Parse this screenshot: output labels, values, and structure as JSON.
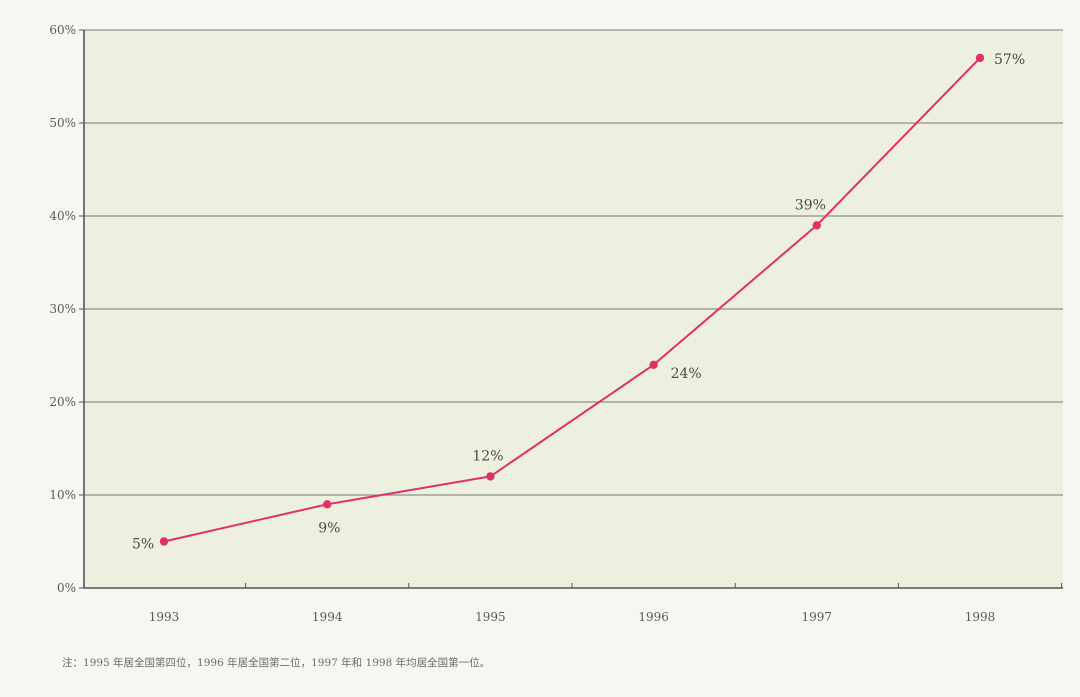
{
  "chart_data": {
    "type": "line",
    "title": "",
    "xlabel": "",
    "ylabel": "",
    "categories": [
      "1993",
      "1994",
      "1995",
      "1996",
      "1997",
      "1998"
    ],
    "series": [
      {
        "values": [
          5,
          9,
          12,
          24,
          39,
          57
        ],
        "color": "#e0306a"
      }
    ],
    "data_labels": [
      "5%",
      "9%",
      "12%",
      "24%",
      "39%",
      "57%"
    ],
    "yticks": [
      "0%",
      "10%",
      "20%",
      "30%",
      "40%",
      "50%",
      "60%"
    ],
    "ylim": [
      0,
      60
    ],
    "grid": "horizontal",
    "legend": "none"
  },
  "colors": {
    "plot_background": "#eef0df",
    "gridline": "#8f918d",
    "axis": "#555555",
    "line": "#e0306a"
  },
  "footnote": "注：1995 年居全国第四位，1996 年居全国第二位，1997 年和 1998 年均居全国第一位。"
}
